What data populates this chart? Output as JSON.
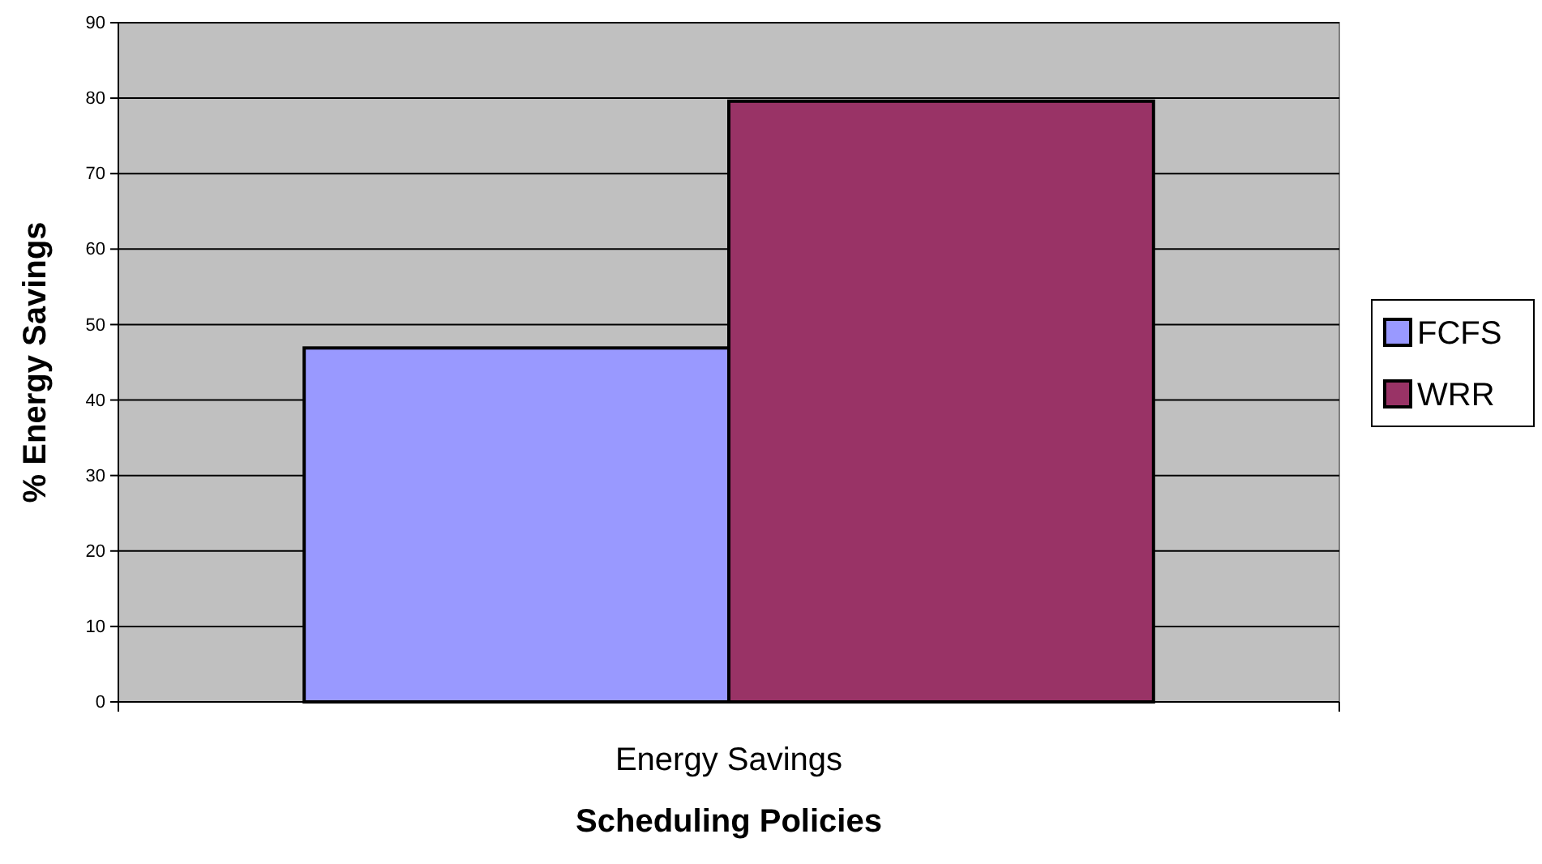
{
  "chart_data": {
    "type": "bar",
    "categories": [
      "Energy Savings"
    ],
    "series": [
      {
        "name": "FCFS",
        "color": "#9999ff",
        "values": [
          46.9
        ]
      },
      {
        "name": "WRR",
        "color": "#993366",
        "values": [
          79.6
        ]
      }
    ],
    "xlabel": "Scheduling Policies",
    "ylabel": "% Energy Savings",
    "ylim": [
      0,
      90
    ],
    "yticks": [
      0,
      10,
      20,
      30,
      40,
      50,
      60,
      70,
      80,
      90
    ],
    "grid": "y",
    "legend": "right"
  }
}
